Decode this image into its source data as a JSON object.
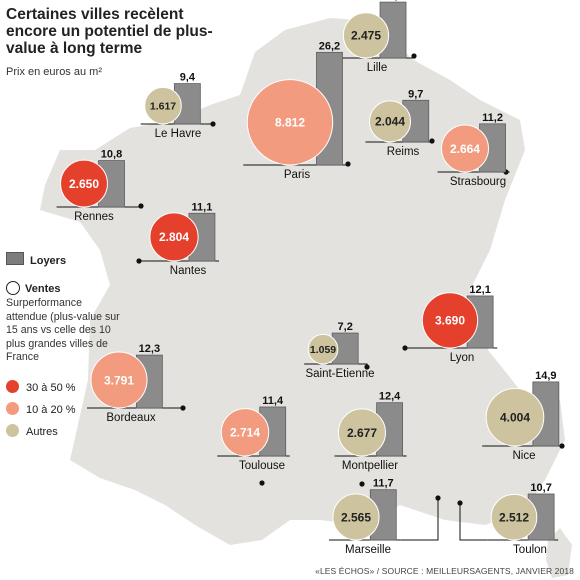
{
  "title": "Certaines villes recèlent encore un potentiel de plus-value à long terme",
  "subtitle": "Prix en euros au m²",
  "legend": {
    "loyers": "Loyers",
    "ventes": "Ventes",
    "description": "Surperformance attendue (plus-value sur 15 ans vs celle des 10 plus grandes villes de France",
    "categories": [
      {
        "label": "30 à 50 %",
        "color": "#e4402c"
      },
      {
        "label": "10 à 20 %",
        "color": "#f39b7f"
      },
      {
        "label": "Autres",
        "color": "#cdc39e"
      }
    ]
  },
  "source": "«LES ÉCHOS» / SOURCE : MEILLEURSAGENTS, JANVIER 2018",
  "colors": {
    "map_fill": "#e3e2de",
    "bar_fill": "#8b8b8b",
    "bar_stroke": "#5e5e5e"
  },
  "chart_data": {
    "type": "bar",
    "series": [
      {
        "name": "Loyers",
        "values": [
          13.0,
          9.4,
          26.2,
          9.7,
          11.2,
          10.8,
          11.1,
          12.1,
          7.2,
          12.3,
          14.9,
          11.4,
          12.4,
          11.7,
          10.7
        ]
      },
      {
        "name": "Ventes",
        "values": [
          2475,
          1617,
          8812,
          2044,
          2664,
          2650,
          2804,
          3690,
          1059,
          3791,
          4004,
          2714,
          2677,
          2565,
          2512
        ]
      }
    ],
    "cities": [
      {
        "name": "Lille",
        "loyer": 13.0,
        "vente": 2475,
        "vente_label": "2.475",
        "loyer_label": "13,0",
        "category": "Autres"
      },
      {
        "name": "Le Havre",
        "loyer": 9.4,
        "vente": 1617,
        "vente_label": "1.617",
        "loyer_label": "9,4",
        "category": "Autres"
      },
      {
        "name": "Paris",
        "loyer": 26.2,
        "vente": 8812,
        "vente_label": "8.812",
        "loyer_label": "26,2",
        "category": "10 à 20 %"
      },
      {
        "name": "Reims",
        "loyer": 9.7,
        "vente": 2044,
        "vente_label": "2.044",
        "loyer_label": "9,7",
        "category": "Autres"
      },
      {
        "name": "Strasbourg",
        "loyer": 11.2,
        "vente": 2664,
        "vente_label": "2.664",
        "loyer_label": "11,2",
        "category": "10 à 20 %"
      },
      {
        "name": "Rennes",
        "loyer": 10.8,
        "vente": 2650,
        "vente_label": "2.650",
        "loyer_label": "10,8",
        "category": "30 à 50 %"
      },
      {
        "name": "Nantes",
        "loyer": 11.1,
        "vente": 2804,
        "vente_label": "2.804",
        "loyer_label": "11,1",
        "category": "30 à 50 %"
      },
      {
        "name": "Lyon",
        "loyer": 12.1,
        "vente": 3690,
        "vente_label": "3.690",
        "loyer_label": "12,1",
        "category": "30 à 50 %"
      },
      {
        "name": "Saint-Etienne",
        "loyer": 7.2,
        "vente": 1059,
        "vente_label": "1.059",
        "loyer_label": "7,2",
        "category": "Autres"
      },
      {
        "name": "Bordeaux",
        "loyer": 12.3,
        "vente": 3791,
        "vente_label": "3.791",
        "loyer_label": "12,3",
        "category": "10 à 20 %"
      },
      {
        "name": "Nice",
        "loyer": 14.9,
        "vente": 4004,
        "vente_label": "4.004",
        "loyer_label": "14,9",
        "category": "Autres"
      },
      {
        "name": "Toulouse",
        "loyer": 11.4,
        "vente": 2714,
        "vente_label": "2.714",
        "loyer_label": "11,4",
        "category": "10 à 20 %"
      },
      {
        "name": "Montpellier",
        "loyer": 12.4,
        "vente": 2677,
        "vente_label": "2.677",
        "loyer_label": "12,4",
        "category": "Autres"
      },
      {
        "name": "Marseille",
        "loyer": 11.7,
        "vente": 2565,
        "vente_label": "2.565",
        "loyer_label": "11,7",
        "category": "Autres"
      },
      {
        "name": "Toulon",
        "loyer": 10.7,
        "vente": 2512,
        "vente_label": "2.512",
        "loyer_label": "10,7",
        "category": "Autres"
      }
    ]
  }
}
